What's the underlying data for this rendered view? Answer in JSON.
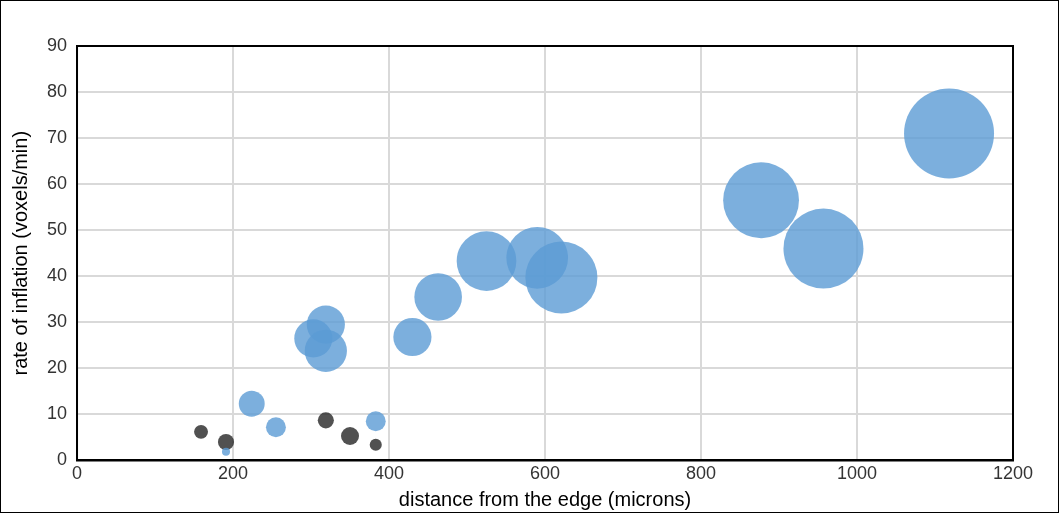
{
  "chart_data": {
    "type": "bubble",
    "xlabel": "distance from the edge (microns)",
    "ylabel": "rate of inflation (voxels/min)",
    "xlim": [
      0,
      1200
    ],
    "xticks": [
      0,
      200,
      400,
      600,
      800,
      1000,
      1200
    ],
    "ylim": [
      0,
      90
    ],
    "yticks": [
      0,
      10,
      20,
      30,
      40,
      50,
      60,
      70,
      80,
      90
    ],
    "grid": true,
    "legend": false,
    "series": [
      {
        "color": "#5b9bd5",
        "x": [
          191,
          224,
          255,
          303,
          319,
          319,
          383,
          430,
          463,
          525,
          590,
          621,
          877,
          957,
          1118
        ],
        "values": [
          1.9,
          12.3,
          7.2,
          26.5,
          29.5,
          23.8,
          8.5,
          26.8,
          35.5,
          43.3,
          44,
          39.7,
          56.5,
          46,
          71
        ],
        "sizes": [
          0.008,
          0.083,
          0.049,
          0.18,
          0.18,
          0.22,
          0.049,
          0.18,
          0.28,
          0.44,
          0.47,
          0.64,
          0.71,
          0.79,
          1
        ]
      },
      {
        "color": "#262626",
        "x": [
          159,
          191,
          319,
          350,
          383
        ],
        "values": [
          6.2,
          4.0,
          8.7,
          5.3,
          3.4
        ],
        "sizes": [
          0.024,
          0.032,
          0.032,
          0.04,
          0.018
        ]
      }
    ]
  }
}
